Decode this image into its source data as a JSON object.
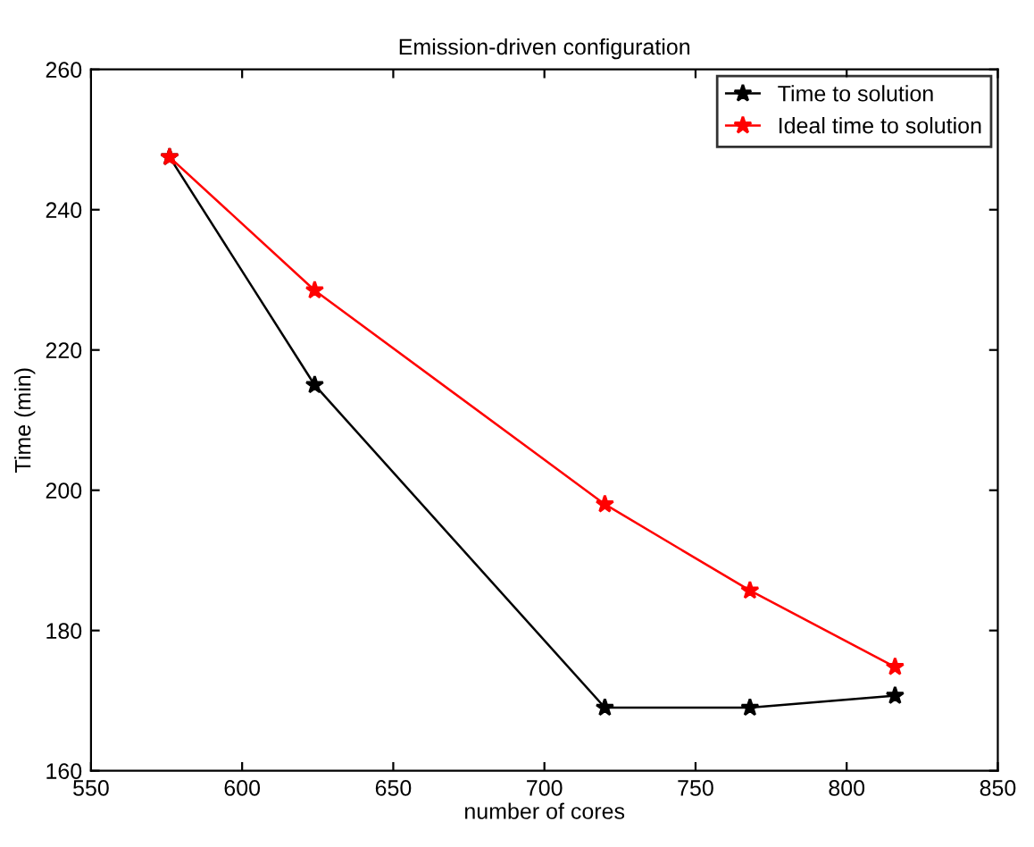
{
  "chart_data": {
    "type": "line",
    "title": "Emission-driven configuration",
    "xlabel": "number of cores",
    "ylabel": "Time (min)",
    "x": [
      576,
      624,
      720,
      768,
      816
    ],
    "series": [
      {
        "name": "Time to solution",
        "color": "#000000",
        "values": [
          247.5,
          215,
          169,
          169,
          170.7
        ]
      },
      {
        "name": "Ideal time to solution",
        "color": "#ff0000",
        "values": [
          247.5,
          228.5,
          198,
          185.7,
          174.8
        ]
      }
    ],
    "xlim": [
      550,
      850
    ],
    "xticks": [
      550,
      600,
      650,
      700,
      750,
      800,
      850
    ],
    "ylim": [
      160,
      260
    ],
    "yticks": [
      160,
      180,
      200,
      220,
      240,
      260
    ],
    "grid": false,
    "legend": "top right",
    "marker": "star",
    "line_style": "solid"
  }
}
